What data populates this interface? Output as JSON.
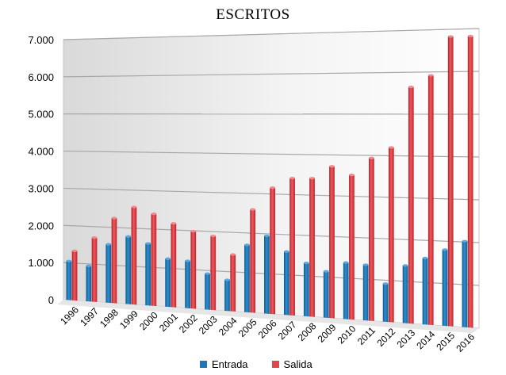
{
  "chart_data": {
    "type": "bar",
    "title": "ESCRITOS",
    "xlabel": "",
    "ylabel": "",
    "categories": [
      "1996",
      "1997",
      "1998",
      "1999",
      "2000",
      "2001",
      "2002",
      "2003",
      "2004",
      "2005",
      "2006",
      "2007",
      "2008",
      "2009",
      "2010",
      "2011",
      "2012",
      "2013",
      "2014",
      "2015",
      "2016"
    ],
    "series": [
      {
        "name": "Entrada",
        "color": "#1f77b4",
        "values": [
          1050,
          950,
          1550,
          1780,
          1620,
          1250,
          1220,
          920,
          790,
          1700,
          1950,
          1580,
          1320,
          1140,
          1380,
          1350,
          920,
          1380,
          1580,
          1800,
          2020
        ]
      },
      {
        "name": "Salida",
        "color": "#e0474c",
        "values": [
          1330,
          1710,
          2250,
          2560,
          2400,
          2170,
          1990,
          1890,
          1440,
          2600,
          3160,
          3410,
          3420,
          3720,
          3520,
          3940,
          4200,
          5650,
          5920,
          6830,
          6830
        ]
      }
    ],
    "ylim": [
      0,
      7000
    ],
    "yticks": [
      "0",
      "1.000",
      "2.000",
      "3.000",
      "4.000",
      "5.000",
      "6.000",
      "7.000"
    ],
    "grid": true,
    "legend_position": "bottom"
  }
}
